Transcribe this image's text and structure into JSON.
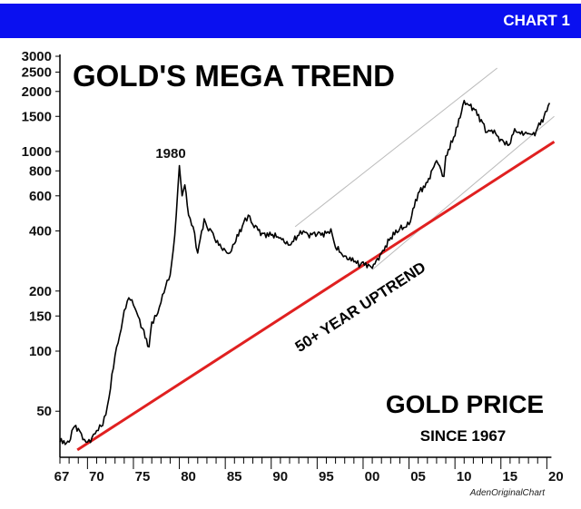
{
  "banner": {
    "label": "CHART 1",
    "color": "#0a10f0"
  },
  "chart_data": {
    "type": "line",
    "title": "GOLD'S MEGA TREND",
    "xlabel": "",
    "ylabel": "",
    "yscale": "log",
    "xlim": [
      1967,
      2020.5
    ],
    "ylim": [
      30,
      3000
    ],
    "grid": false,
    "y_ticks": [
      50,
      100,
      150,
      200,
      400,
      600,
      800,
      1000,
      1500,
      2000,
      2500,
      3000
    ],
    "x_ticks": [
      {
        "year": 1967,
        "label": "67"
      },
      {
        "year": 1970,
        "label": "70"
      },
      {
        "year": 1975,
        "label": "75"
      },
      {
        "year": 1980,
        "label": "80"
      },
      {
        "year": 1985,
        "label": "85"
      },
      {
        "year": 1990,
        "label": "90"
      },
      {
        "year": 1995,
        "label": "95"
      },
      {
        "year": 2000,
        "label": "00"
      },
      {
        "year": 2005,
        "label": "05"
      },
      {
        "year": 2010,
        "label": "10"
      },
      {
        "year": 2015,
        "label": "15"
      },
      {
        "year": 2020,
        "label": "20"
      }
    ],
    "series": [
      {
        "name": "Gold Price",
        "color": "#000000",
        "x": [
          1967,
          1968,
          1968.3,
          1968.6,
          1969,
          1969.5,
          1970,
          1970.5,
          1971,
          1971.5,
          1972,
          1972.5,
          1973,
          1973.5,
          1974,
          1974.5,
          1975,
          1975.5,
          1976,
          1976.7,
          1977,
          1977.5,
          1978,
          1978.5,
          1979,
          1979.5,
          1980,
          1980.3,
          1980.6,
          1981,
          1981.5,
          1982,
          1982.7,
          1983,
          1983.5,
          1984,
          1985,
          1985.5,
          1986,
          1987,
          1987.5,
          1988,
          1989,
          1990,
          1991,
          1992,
          1993,
          1993.5,
          1994,
          1995,
          1996,
          1996.5,
          1997,
          1998,
          1999,
          1999.7,
          2000,
          2001,
          2002,
          2003,
          2004,
          2005,
          2006,
          2007,
          2008,
          2008.8,
          2009,
          2010,
          2011,
          2011.6,
          2012,
          2013,
          2013.5,
          2014,
          2015,
          2015.9,
          2016.5,
          2017,
          2018,
          2018.7,
          2019,
          2019.7,
          2020.3
        ],
        "y": [
          35,
          35,
          40,
          42,
          41,
          36,
          35,
          37,
          40,
          42,
          48,
          65,
          95,
          120,
          160,
          185,
          170,
          150,
          130,
          105,
          140,
          150,
          175,
          210,
          240,
          380,
          850,
          600,
          680,
          480,
          420,
          310,
          460,
          420,
          400,
          350,
          320,
          310,
          345,
          440,
          480,
          430,
          390,
          380,
          370,
          340,
          380,
          400,
          385,
          385,
          390,
          410,
          330,
          300,
          280,
          270,
          280,
          260,
          310,
          370,
          410,
          430,
          620,
          700,
          900,
          750,
          950,
          1200,
          1800,
          1700,
          1650,
          1400,
          1250,
          1280,
          1150,
          1080,
          1300,
          1250,
          1230,
          1200,
          1320,
          1500,
          1750
        ]
      },
      {
        "name": "50+ Year Uptrend",
        "color": "#e02020",
        "x": [
          1968.9,
          2020.8
        ],
        "y": [
          32,
          1120
        ]
      },
      {
        "name": "Upper channel",
        "color": "#bbbbbb",
        "x": [
          1992.6,
          2014.6
        ],
        "y": [
          420,
          2620
        ]
      },
      {
        "name": "Lower channel",
        "color": "#bbbbbb",
        "x": [
          2001,
          2020.8
        ],
        "y": [
          256,
          1500
        ]
      }
    ],
    "annotations": {
      "peak": "1980",
      "trend": "50+ YEAR UPTREND",
      "subtitle_main": "GOLD PRICE",
      "subtitle_since": "SINCE 1967",
      "credit": "AdenOriginalChart"
    }
  }
}
